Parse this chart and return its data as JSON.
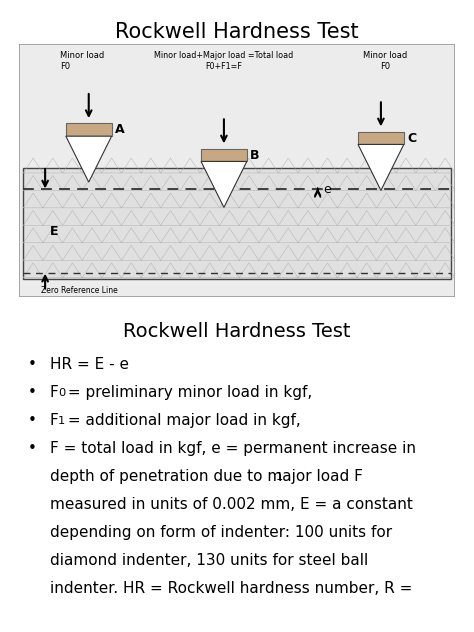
{
  "title1": "Rockwell Hardness Test",
  "title2": "Rockwell Hardness Test",
  "diagram_bg": "#ececec",
  "material_color": "#c8a882",
  "indenter_fill": "#ffffff",
  "mesh_color": "#aaaaaa",
  "label_A": "A",
  "label_B": "B",
  "label_C": "C",
  "label_E": "E",
  "label_e": "e",
  "minor_load_left": "Minor load\nF0",
  "major_load_mid": "Minor load+Major load =Total load\nF0+F1=F",
  "minor_load_right": "Minor load\nF0",
  "zero_ref_text": "Zero Reference Line",
  "bg_color": "#ffffff",
  "text_color": "#000000",
  "border_color": "#999999",
  "dashed_color": "#333333"
}
